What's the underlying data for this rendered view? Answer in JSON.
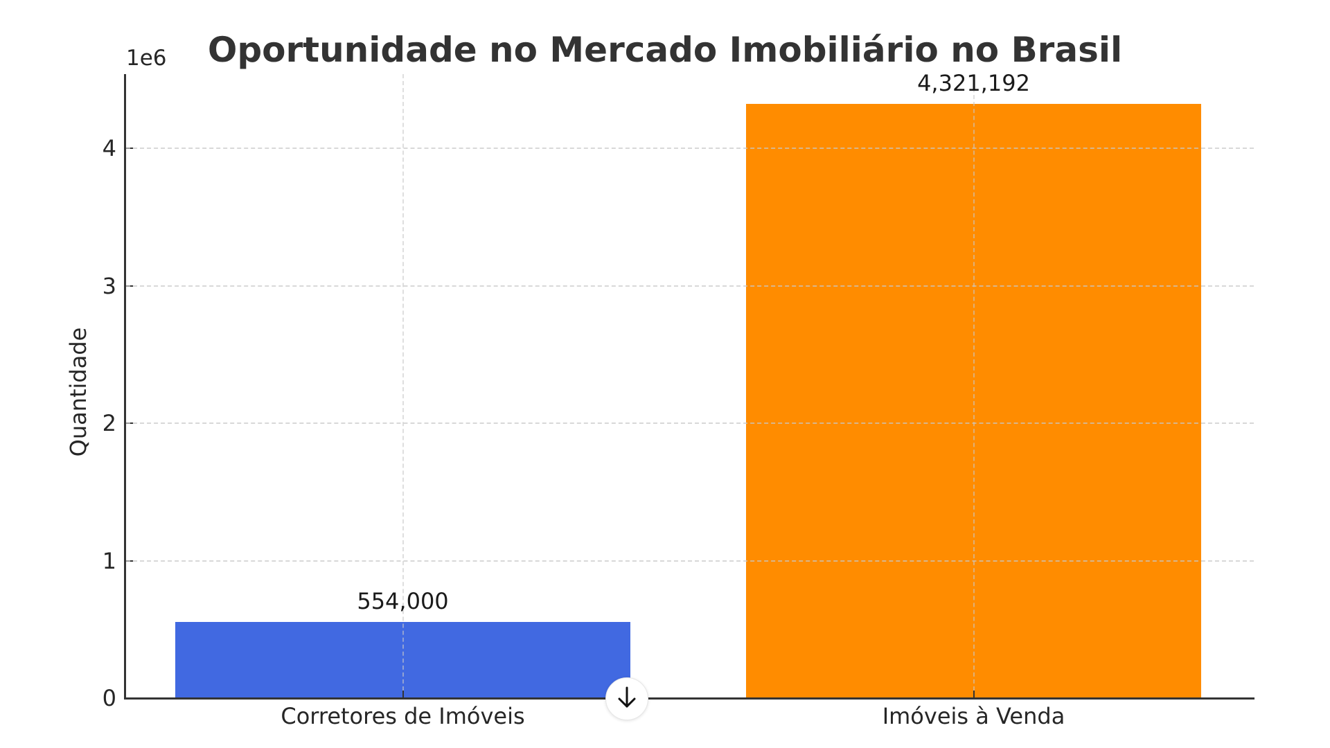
{
  "chart_data": {
    "type": "bar",
    "title": "Oportunidade no Mercado Imobiliário no Brasil",
    "xlabel": "",
    "ylabel": "Quantidade",
    "y_offset_label": "1e6",
    "categories": [
      "Corretores de Imóveis",
      "Imóveis à Venda"
    ],
    "values": [
      554000,
      4321192
    ],
    "value_labels": [
      "554,000",
      "4,321,192"
    ],
    "colors": [
      "#4169E1",
      "#FF8C00"
    ],
    "ylim": [
      0,
      4540000
    ],
    "yticks": [
      0,
      1,
      2,
      3,
      4
    ],
    "ytick_labels": [
      "0",
      "1",
      "2",
      "3",
      "4"
    ],
    "grid": true,
    "grid_style": "dashed",
    "legend": null
  },
  "ui": {
    "scroll_down_button": {
      "icon": "arrow-down-icon",
      "glyph": "↓"
    }
  }
}
